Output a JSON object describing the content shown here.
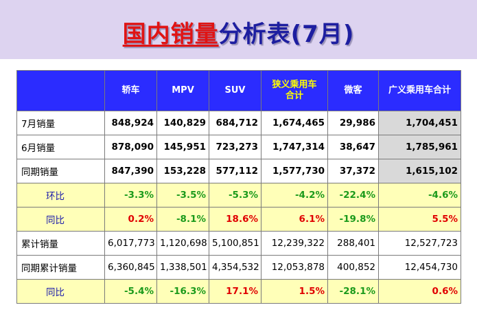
{
  "title": {
    "part1": "国内销量",
    "part2": "分析表(7月)"
  },
  "headers": [
    "",
    "轿车",
    "MPV",
    "SUV",
    "狭义乘用车\n合计",
    "微客",
    "广义乘用车合计"
  ],
  "rows": [
    {
      "label": "7月销量",
      "cells": [
        {
          "v": "848,924"
        },
        {
          "v": "140,829"
        },
        {
          "v": "684,712"
        },
        {
          "v": "1,674,465"
        },
        {
          "v": "29,986"
        },
        {
          "v": "1,704,451"
        }
      ]
    },
    {
      "label": "6月销量",
      "cells": [
        {
          "v": "878,090"
        },
        {
          "v": "145,951"
        },
        {
          "v": "723,273"
        },
        {
          "v": "1,747,314"
        },
        {
          "v": "38,647"
        },
        {
          "v": "1,785,961"
        }
      ]
    },
    {
      "label": "同期销量",
      "cells": [
        {
          "v": "847,390"
        },
        {
          "v": "153,228"
        },
        {
          "v": "577,112"
        },
        {
          "v": "1,577,730"
        },
        {
          "v": "37,372"
        },
        {
          "v": "1,615,102"
        }
      ]
    },
    {
      "label": "环比",
      "cells": [
        {
          "v": "-3.3%"
        },
        {
          "v": "-3.5%"
        },
        {
          "v": "-5.3%"
        },
        {
          "v": "-4.2%"
        },
        {
          "v": "-22.4%"
        },
        {
          "v": "-4.6%"
        }
      ]
    },
    {
      "label": "同比",
      "cells": [
        {
          "v": "0.2%"
        },
        {
          "v": "-8.1%"
        },
        {
          "v": "18.6%"
        },
        {
          "v": "6.1%"
        },
        {
          "v": "-19.8%"
        },
        {
          "v": "5.5%"
        }
      ]
    },
    {
      "label": "累计销量",
      "cells": [
        {
          "v": "6,017,773"
        },
        {
          "v": "1,120,698"
        },
        {
          "v": "5,100,851"
        },
        {
          "v": "12,239,322"
        },
        {
          "v": "288,401"
        },
        {
          "v": "12,527,723"
        }
      ]
    },
    {
      "label": "同期累计销量",
      "cells": [
        {
          "v": "6,360,845"
        },
        {
          "v": "1,338,501"
        },
        {
          "v": "4,354,532"
        },
        {
          "v": "12,053,878"
        },
        {
          "v": "400,852"
        },
        {
          "v": "12,454,730"
        }
      ]
    },
    {
      "label": "同比",
      "cells": [
        {
          "v": "-5.4%"
        },
        {
          "v": "-16.3%"
        },
        {
          "v": "17.1%"
        },
        {
          "v": "1.5%"
        },
        {
          "v": "-28.1%"
        },
        {
          "v": "0.6%"
        }
      ]
    }
  ],
  "colors": {
    "banner": "#ddd3f0",
    "header_bg": "#2b2cff",
    "positive": "#e00000",
    "negative": "#1b9a1b",
    "row_highlight": "#ffffb8",
    "total_col": "#d9d9d9"
  }
}
